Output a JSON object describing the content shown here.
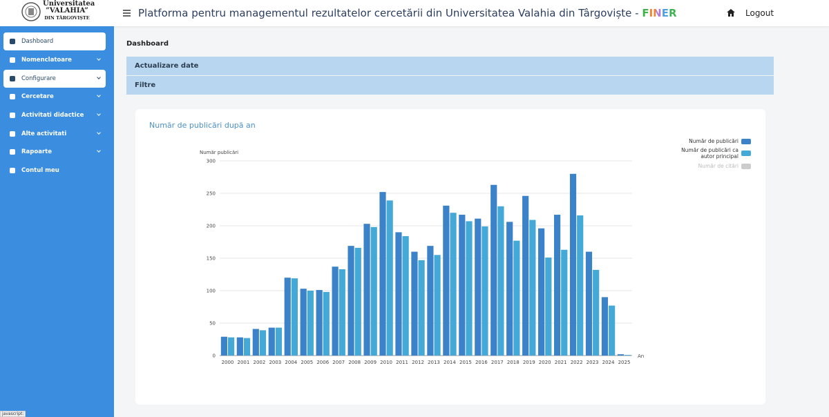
{
  "logo": {
    "line1": "Universitatea",
    "line2": "”VALAHIA”",
    "line3": "DIN TÂRGOVIȘTE"
  },
  "header": {
    "title": "Platforma pentru managementul rezultatelor cercetării din Universitatea Valahia din Târgoviște - ",
    "brand": "FINER",
    "logout": "Logout"
  },
  "sidebar": {
    "items": [
      "Dashboard",
      "Nomenclatoare",
      "Configurare",
      "Cercetare",
      "Activitati didactice",
      "Alte activitati",
      "Rapoarte",
      "Contul meu"
    ]
  },
  "page": {
    "heading": "Dashboard",
    "panels": [
      "Actualizare date",
      "Filtre"
    ]
  },
  "status_bar": "javascript:",
  "chart_data": {
    "type": "bar",
    "title": "Număr de publicări după an",
    "y_label": "Număr publicări",
    "x_label": "An",
    "categories": [
      "2000",
      "2001",
      "2002",
      "2003",
      "2004",
      "2005",
      "2006",
      "2007",
      "2008",
      "2009",
      "2010",
      "2011",
      "2012",
      "2013",
      "2014",
      "2015",
      "2016",
      "2017",
      "2018",
      "2019",
      "2020",
      "2021",
      "2022",
      "2023",
      "2024",
      "2025"
    ],
    "series": [
      {
        "name": "Număr de publicări",
        "color": "#3b82c8",
        "visible": true,
        "values": [
          29,
          28,
          41,
          43,
          120,
          103,
          101,
          137,
          169,
          203,
          252,
          190,
          160,
          169,
          231,
          217,
          211,
          263,
          206,
          246,
          196,
          217,
          280,
          160,
          90,
          2
        ]
      },
      {
        "name": "Număr de publicări ca autor principal",
        "color": "#45a9d8",
        "visible": true,
        "values": [
          28,
          27,
          39,
          43,
          119,
          100,
          98,
          133,
          166,
          198,
          239,
          184,
          147,
          155,
          220,
          207,
          199,
          230,
          177,
          209,
          151,
          163,
          216,
          132,
          77,
          1
        ]
      },
      {
        "name": "Număr de citări",
        "color": "#cccccc",
        "visible": false,
        "values": [
          null,
          null,
          null,
          null,
          null,
          null,
          null,
          null,
          null,
          null,
          null,
          null,
          null,
          null,
          null,
          null,
          null,
          null,
          null,
          null,
          null,
          null,
          null,
          null,
          null,
          null
        ]
      }
    ],
    "ylim": [
      0,
      300
    ],
    "yticks": [
      0,
      50,
      100,
      150,
      200,
      250,
      300
    ],
    "grid": true,
    "legend": "top-right"
  }
}
